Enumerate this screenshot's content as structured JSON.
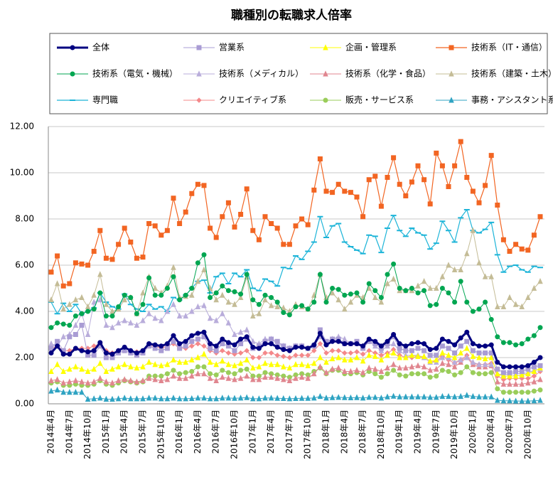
{
  "chart_data": {
    "type": "line",
    "title": "職種別の転職求人倍率",
    "categories": [
      "2014年4月",
      null,
      null,
      "2014年7月",
      null,
      null,
      "2014年10月",
      null,
      null,
      "2015年1月",
      null,
      null,
      "2015年4月",
      null,
      null,
      "2015年7月",
      null,
      null,
      "2015年10月",
      null,
      null,
      "2016年1月",
      null,
      null,
      "2016年4月",
      null,
      null,
      "2016年7月",
      null,
      null,
      "2016年10月",
      null,
      null,
      "2017年1月",
      null,
      null,
      "2017年4月",
      null,
      null,
      "2017年7月",
      null,
      null,
      "2017年10月",
      null,
      null,
      "2018年1月",
      null,
      null,
      "2018年4月",
      null,
      null,
      "2018年7月",
      null,
      null,
      "2018年10月",
      null,
      null,
      "2019年1月",
      null,
      null,
      "2019年4月",
      null,
      null,
      "2019年7月",
      null,
      null,
      "2019年10月",
      null,
      null,
      "2020年1月",
      null,
      null,
      "2020年4月",
      null,
      null,
      "2020年7月",
      null,
      null,
      "2020年10月",
      null,
      null
    ],
    "ylim": [
      0,
      12
    ],
    "yticks": [
      {
        "value": 0,
        "label": "0.00"
      },
      {
        "value": 2,
        "label": "2.00"
      },
      {
        "value": 4,
        "label": "4.00"
      },
      {
        "value": 6,
        "label": "6.00"
      },
      {
        "value": 8,
        "label": "8.00"
      },
      {
        "value": 10,
        "label": "10.00"
      },
      {
        "value": 12,
        "label": "12.00"
      }
    ],
    "grid": true,
    "series": [
      {
        "name": "全体",
        "color": "#000080",
        "width": 3,
        "marker": "circle",
        "values": [
          2.2,
          2.5,
          2.15,
          2.15,
          2.4,
          2.3,
          2.25,
          2.3,
          2.65,
          2.2,
          2.15,
          2.3,
          2.45,
          2.3,
          2.2,
          2.3,
          2.6,
          2.55,
          2.5,
          2.6,
          2.95,
          2.6,
          2.7,
          2.95,
          3.05,
          3.1,
          2.6,
          2.5,
          2.8,
          2.65,
          2.55,
          2.8,
          2.9,
          2.45,
          2.4,
          2.6,
          2.6,
          2.45,
          2.35,
          2.3,
          2.45,
          2.45,
          2.4,
          2.55,
          3.05,
          2.55,
          2.7,
          2.7,
          2.6,
          2.6,
          2.6,
          2.5,
          2.8,
          2.7,
          2.5,
          2.7,
          3.0,
          2.6,
          2.5,
          2.6,
          2.65,
          2.6,
          2.35,
          2.4,
          2.8,
          2.7,
          2.55,
          2.85,
          3.1,
          2.6,
          2.5,
          2.5,
          2.55,
          1.8,
          1.6,
          1.6,
          1.6,
          1.6,
          1.65,
          1.8,
          2.0
        ]
      },
      {
        "name": "営業系",
        "color": "#a99cd4",
        "width": 1,
        "marker": "square",
        "values": [
          2.4,
          2.7,
          2.3,
          2.9,
          3.0,
          3.4,
          2.1,
          2.1,
          2.5,
          2.0,
          2.0,
          2.2,
          2.3,
          2.2,
          2.1,
          2.2,
          2.5,
          2.4,
          2.3,
          2.4,
          2.7,
          2.4,
          2.5,
          2.7,
          2.8,
          2.9,
          2.4,
          2.3,
          2.6,
          2.5,
          2.3,
          2.6,
          2.8,
          2.4,
          2.5,
          2.7,
          2.8,
          2.7,
          2.5,
          2.4,
          2.5,
          2.5,
          2.4,
          2.5,
          3.2,
          2.7,
          2.8,
          2.8,
          2.6,
          2.6,
          2.7,
          2.4,
          2.7,
          2.6,
          2.4,
          2.6,
          2.9,
          2.4,
          2.3,
          2.3,
          2.4,
          2.3,
          2.1,
          2.1,
          2.5,
          2.4,
          2.2,
          2.5,
          2.7,
          2.3,
          2.2,
          2.2,
          2.2,
          1.5,
          1.35,
          1.35,
          1.4,
          1.4,
          1.5,
          1.6,
          1.65
        ]
      },
      {
        "name": "企画・管理系",
        "color": "#ffff00",
        "width": 1,
        "marker": "triangle",
        "values": [
          1.4,
          1.7,
          1.4,
          1.5,
          1.6,
          1.5,
          1.4,
          1.5,
          1.75,
          1.4,
          1.5,
          1.6,
          1.7,
          1.6,
          1.55,
          1.6,
          1.8,
          1.7,
          1.65,
          1.7,
          1.9,
          1.8,
          1.8,
          1.9,
          2.0,
          2.15,
          1.8,
          1.7,
          1.85,
          1.7,
          1.65,
          1.75,
          1.9,
          1.55,
          1.6,
          1.75,
          1.7,
          1.7,
          1.6,
          1.55,
          1.7,
          1.7,
          1.65,
          1.75,
          2.0,
          1.8,
          1.95,
          2.0,
          1.9,
          1.9,
          2.0,
          1.85,
          2.1,
          2.05,
          1.9,
          2.1,
          2.2,
          2.0,
          2.0,
          2.1,
          2.05,
          2.05,
          1.85,
          1.9,
          2.2,
          2.1,
          2.0,
          2.2,
          2.4,
          2.05,
          2.0,
          1.95,
          2.0,
          1.3,
          1.2,
          1.2,
          1.2,
          1.25,
          1.3,
          1.4,
          1.55
        ]
      },
      {
        "name": "技術系（IT・通信）",
        "color": "#f26522",
        "width": 1.2,
        "marker": "square",
        "values": [
          5.7,
          6.4,
          5.1,
          5.2,
          6.1,
          6.05,
          6.0,
          6.6,
          7.5,
          6.3,
          6.25,
          6.9,
          7.6,
          7.0,
          6.3,
          6.35,
          7.8,
          7.7,
          7.3,
          7.5,
          8.9,
          7.8,
          8.3,
          9.1,
          9.5,
          9.45,
          7.6,
          7.2,
          8.1,
          8.7,
          7.65,
          8.2,
          9.3,
          7.5,
          7.1,
          8.1,
          7.8,
          7.6,
          6.9,
          6.9,
          7.7,
          8.0,
          7.75,
          9.25,
          10.6,
          9.2,
          9.15,
          9.5,
          9.2,
          9.15,
          8.95,
          8.1,
          9.7,
          9.85,
          8.55,
          9.8,
          10.65,
          9.5,
          9.0,
          9.6,
          10.3,
          9.7,
          8.65,
          10.85,
          10.3,
          9.4,
          10.3,
          11.35,
          9.8,
          9.2,
          8.7,
          9.45,
          10.75,
          8.6,
          7.1,
          6.6,
          6.9,
          6.7,
          6.65,
          7.3,
          8.1
        ]
      },
      {
        "name": "技術系（電気・機械）",
        "color": "#00a651",
        "width": 1,
        "marker": "circle",
        "values": [
          3.3,
          3.5,
          3.45,
          3.4,
          3.8,
          3.9,
          4.0,
          4.1,
          4.8,
          3.8,
          3.8,
          4.2,
          4.7,
          4.6,
          3.9,
          4.3,
          5.45,
          4.7,
          4.7,
          5.0,
          5.5,
          4.5,
          4.7,
          5.0,
          6.1,
          6.45,
          4.6,
          4.8,
          5.1,
          4.9,
          4.85,
          4.75,
          5.6,
          4.5,
          4.3,
          4.7,
          4.6,
          4.4,
          3.95,
          3.85,
          4.2,
          4.25,
          4.1,
          4.4,
          5.6,
          4.4,
          5.0,
          4.95,
          4.7,
          4.75,
          4.8,
          4.4,
          5.2,
          4.9,
          4.6,
          5.6,
          6.05,
          5.0,
          4.9,
          5.0,
          4.8,
          4.9,
          4.25,
          4.3,
          5.0,
          4.8,
          4.4,
          5.3,
          4.4,
          4.0,
          4.1,
          4.4,
          3.65,
          2.9,
          2.65,
          2.65,
          2.55,
          2.6,
          2.8,
          2.95,
          3.3
        ]
      },
      {
        "name": "技術系（メディカル）",
        "color": "#b9addb",
        "width": 1,
        "marker": "triangle",
        "values": [
          2.6,
          2.5,
          2.9,
          3.0,
          3.4,
          3.9,
          3.0,
          4.4,
          4.5,
          3.4,
          3.3,
          3.5,
          3.6,
          3.5,
          3.4,
          3.6,
          3.9,
          3.7,
          3.6,
          4.0,
          4.3,
          3.8,
          3.8,
          4.0,
          4.2,
          4.25,
          3.7,
          3.6,
          3.9,
          3.5,
          3.0,
          3.1,
          3.2,
          2.7,
          2.6,
          2.8,
          2.8,
          2.6,
          2.5,
          2.4,
          2.5,
          2.5,
          2.4,
          2.5,
          2.9,
          2.6,
          2.8,
          2.9,
          2.8,
          2.6,
          2.6,
          2.5,
          2.7,
          2.5,
          2.3,
          2.5,
          2.6,
          2.3,
          2.1,
          2.1,
          2.1,
          2.0,
          1.8,
          1.8,
          2.0,
          2.0,
          1.8,
          1.9,
          2.0,
          1.8,
          1.7,
          1.7,
          1.7,
          1.3,
          1.25,
          1.3,
          1.3,
          1.3,
          1.35,
          1.45,
          1.5
        ]
      },
      {
        "name": "技術系（化学・食品）",
        "color": "#e0868f",
        "width": 1,
        "marker": "triangle",
        "values": [
          1.0,
          1.05,
          0.9,
          0.95,
          1.0,
          0.95,
          0.9,
          0.95,
          1.1,
          0.95,
          0.9,
          1.0,
          1.05,
          1.0,
          0.95,
          1.0,
          1.1,
          1.05,
          1.0,
          1.05,
          1.2,
          1.1,
          1.1,
          1.2,
          1.3,
          1.3,
          1.1,
          1.0,
          1.15,
          1.1,
          1.05,
          1.1,
          1.2,
          1.05,
          1.05,
          1.15,
          1.15,
          1.1,
          1.05,
          1.0,
          1.1,
          1.15,
          1.1,
          1.3,
          1.6,
          1.35,
          1.5,
          1.55,
          1.4,
          1.4,
          1.45,
          1.35,
          1.55,
          1.5,
          1.4,
          1.55,
          1.7,
          1.55,
          1.55,
          1.6,
          1.65,
          1.6,
          1.45,
          1.5,
          1.75,
          1.7,
          1.6,
          1.8,
          2.0,
          1.7,
          1.6,
          1.6,
          1.65,
          0.95,
          0.85,
          0.85,
          0.85,
          0.85,
          0.9,
          0.95,
          1.05
        ]
      },
      {
        "name": "技術系（建築・土木）",
        "color": "#c4bc96",
        "width": 1,
        "marker": "triangle",
        "values": [
          4.5,
          5.2,
          4.1,
          4.3,
          4.5,
          4.6,
          4.2,
          4.7,
          5.6,
          4.3,
          4.0,
          4.1,
          4.5,
          4.6,
          3.9,
          4.8,
          5.5,
          5.0,
          4.8,
          5.1,
          5.9,
          4.6,
          4.65,
          4.7,
          5.3,
          5.8,
          5.0,
          4.5,
          4.7,
          4.4,
          4.3,
          4.6,
          5.5,
          3.8,
          3.9,
          4.5,
          4.25,
          4.2,
          4.15,
          4.0,
          4.3,
          4.2,
          4.1,
          4.7,
          5.6,
          4.6,
          4.8,
          4.5,
          4.1,
          4.4,
          4.7,
          4.6,
          5.0,
          4.6,
          4.4,
          5.2,
          5.4,
          4.9,
          4.9,
          4.9,
          5.1,
          5.3,
          5.0,
          5.0,
          5.5,
          6.0,
          5.8,
          5.8,
          6.5,
          7.5,
          6.1,
          5.5,
          5.5,
          4.2,
          4.2,
          4.6,
          4.3,
          4.2,
          4.6,
          5.0,
          5.3
        ]
      },
      {
        "name": "専門職",
        "color": "#1cb4d8",
        "width": 1.2,
        "marker": "dash",
        "values": [
          4.4,
          3.9,
          4.35,
          4.0,
          4.3,
          3.9,
          4.0,
          4.15,
          4.8,
          4.4,
          4.2,
          4.1,
          4.75,
          4.3,
          4.1,
          4.0,
          4.3,
          4.1,
          4.2,
          4.0,
          4.6,
          4.5,
          4.7,
          5.0,
          5.3,
          5.35,
          4.8,
          5.5,
          5.65,
          5.2,
          5.65,
          5.5,
          5.8,
          5.0,
          4.9,
          5.4,
          5.3,
          5.1,
          5.9,
          5.85,
          6.4,
          6.25,
          6.6,
          7.0,
          8.1,
          7.2,
          7.7,
          7.8,
          7.0,
          6.8,
          6.65,
          6.5,
          7.3,
          7.25,
          6.55,
          7.6,
          8.15,
          7.5,
          7.25,
          7.6,
          7.4,
          7.3,
          6.7,
          6.95,
          7.9,
          7.5,
          7.0,
          8.05,
          8.4,
          7.5,
          7.4,
          7.55,
          7.85,
          6.45,
          5.7,
          5.95,
          6.0,
          5.8,
          5.7,
          5.95,
          5.9
        ]
      },
      {
        "name": "クリエイティブ系",
        "color": "#f4888a",
        "width": 1,
        "marker": "diamond",
        "values": [
          2.4,
          2.5,
          2.3,
          2.3,
          2.4,
          2.4,
          2.4,
          2.5,
          2.6,
          2.3,
          2.2,
          2.3,
          2.45,
          2.3,
          2.25,
          2.3,
          2.5,
          2.5,
          2.4,
          2.5,
          2.6,
          2.4,
          2.4,
          2.5,
          2.6,
          2.5,
          2.3,
          2.2,
          2.3,
          2.2,
          2.15,
          2.2,
          2.3,
          2.0,
          2.0,
          2.2,
          2.2,
          2.1,
          2.05,
          2.0,
          2.1,
          2.1,
          2.1,
          2.3,
          2.6,
          2.2,
          2.3,
          2.3,
          2.2,
          2.2,
          2.25,
          2.15,
          2.3,
          2.2,
          2.1,
          2.2,
          2.35,
          2.1,
          2.0,
          2.0,
          2.05,
          2.0,
          1.8,
          1.85,
          2.05,
          1.9,
          1.75,
          1.9,
          2.1,
          1.75,
          1.7,
          1.7,
          1.75,
          1.2,
          1.05,
          1.1,
          1.1,
          1.1,
          1.1,
          1.2,
          1.4
        ]
      },
      {
        "name": "販売・サービス系",
        "color": "#9acd5a",
        "width": 1,
        "marker": "circle",
        "values": [
          0.9,
          0.95,
          0.8,
          0.8,
          0.85,
          0.8,
          0.8,
          0.85,
          1.0,
          0.85,
          0.8,
          0.9,
          1.0,
          0.95,
          0.9,
          0.95,
          1.2,
          1.2,
          1.2,
          1.3,
          1.45,
          1.3,
          1.35,
          1.4,
          1.6,
          1.6,
          1.3,
          1.25,
          1.45,
          1.35,
          1.3,
          1.45,
          1.5,
          1.2,
          1.2,
          1.35,
          1.3,
          1.25,
          1.2,
          1.15,
          1.25,
          1.3,
          1.25,
          1.4,
          1.55,
          1.3,
          1.45,
          1.45,
          1.3,
          1.3,
          1.35,
          1.25,
          1.4,
          1.3,
          1.15,
          1.3,
          1.45,
          1.25,
          1.2,
          1.3,
          1.3,
          1.3,
          1.15,
          1.2,
          1.45,
          1.4,
          1.25,
          1.35,
          1.6,
          1.35,
          1.3,
          1.3,
          1.35,
          0.65,
          0.5,
          0.5,
          0.5,
          0.5,
          0.5,
          0.55,
          0.6
        ]
      },
      {
        "name": "事務・アシスタント系",
        "color": "#2fa3c2",
        "width": 1,
        "marker": "triangle",
        "values": [
          0.55,
          0.6,
          0.5,
          0.5,
          0.5,
          0.5,
          0.2,
          0.22,
          0.25,
          0.2,
          0.2,
          0.22,
          0.25,
          0.22,
          0.22,
          0.22,
          0.25,
          0.25,
          0.22,
          0.22,
          0.25,
          0.22,
          0.22,
          0.23,
          0.25,
          0.25,
          0.22,
          0.22,
          0.25,
          0.25,
          0.24,
          0.25,
          0.27,
          0.22,
          0.22,
          0.25,
          0.25,
          0.24,
          0.23,
          0.22,
          0.23,
          0.24,
          0.24,
          0.25,
          0.32,
          0.25,
          0.27,
          0.28,
          0.27,
          0.26,
          0.27,
          0.25,
          0.28,
          0.28,
          0.25,
          0.3,
          0.33,
          0.3,
          0.3,
          0.3,
          0.3,
          0.3,
          0.28,
          0.28,
          0.32,
          0.32,
          0.3,
          0.32,
          0.37,
          0.32,
          0.3,
          0.3,
          0.3,
          0.15,
          0.13,
          0.13,
          0.12,
          0.12,
          0.12,
          0.13,
          0.15
        ]
      }
    ]
  }
}
